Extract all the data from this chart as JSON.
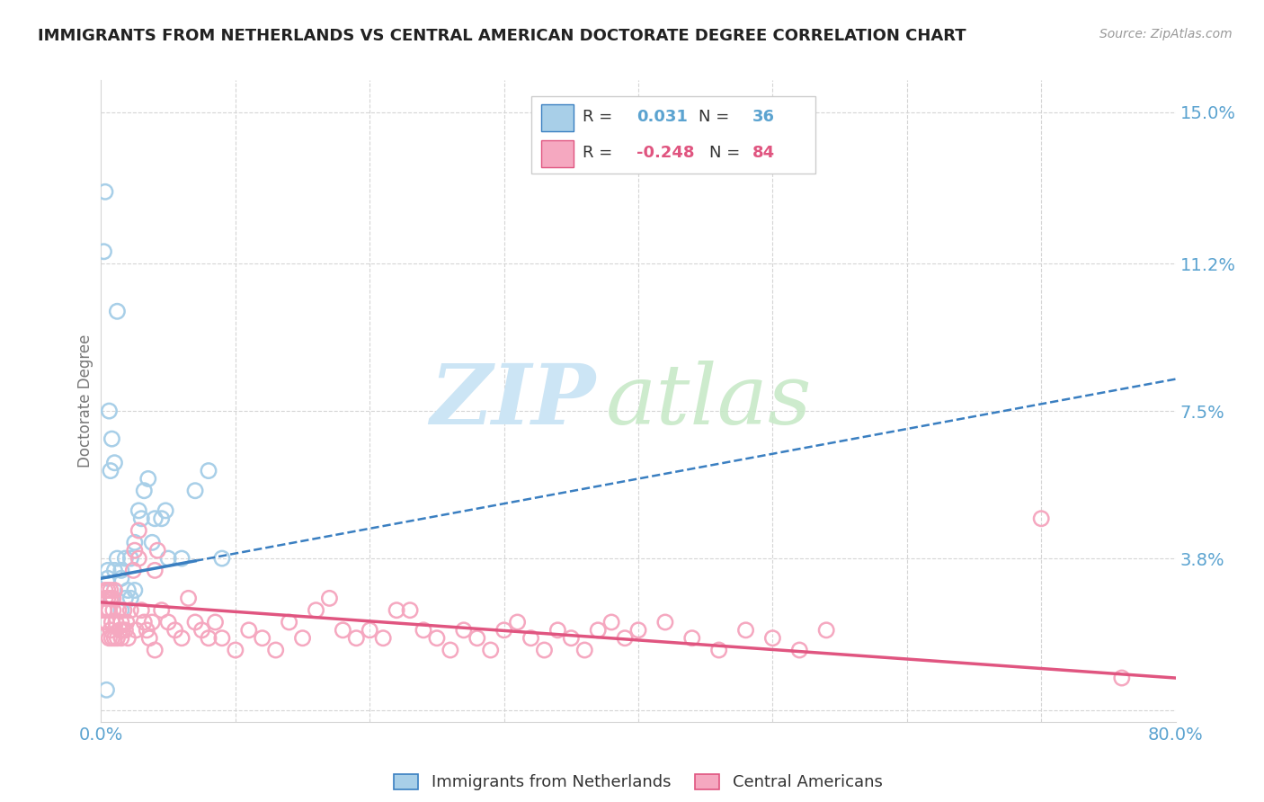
{
  "title": "IMMIGRANTS FROM NETHERLANDS VS CENTRAL AMERICAN DOCTORATE DEGREE CORRELATION CHART",
  "source": "Source: ZipAtlas.com",
  "ylabel": "Doctorate Degree",
  "color_blue": "#a8cfe8",
  "color_pink": "#f5a8c0",
  "color_blue_line": "#3a7fc1",
  "color_pink_line": "#e05580",
  "color_blue_text": "#5ba3d0",
  "color_grid": "#d5d5d5",
  "ytick_vals": [
    0.0,
    0.038,
    0.075,
    0.112,
    0.15
  ],
  "ytick_labels": [
    "",
    "3.8%",
    "7.5%",
    "11.2%",
    "15.0%"
  ],
  "xtick_vals": [
    0.0,
    0.8
  ],
  "xtick_labels": [
    "0.0%",
    "80.0%"
  ],
  "xlim": [
    0.0,
    0.8
  ],
  "ylim": [
    -0.003,
    0.158
  ],
  "xgrid_vals": [
    0.1,
    0.2,
    0.3,
    0.4,
    0.5,
    0.6,
    0.7
  ],
  "nl_line_x0": 0.0,
  "nl_line_y0": 0.033,
  "nl_line_x1": 0.07,
  "nl_line_y1": 0.038,
  "nl_line_dash_x1": 0.8,
  "nl_line_dash_y1": 0.083,
  "ca_line_x0": 0.0,
  "ca_line_y0": 0.027,
  "ca_line_x1": 0.8,
  "ca_line_y1": 0.008,
  "nl_x": [
    0.01,
    0.015,
    0.018,
    0.022,
    0.025,
    0.028,
    0.03,
    0.032,
    0.035,
    0.038,
    0.04,
    0.045,
    0.048,
    0.05,
    0.06,
    0.07,
    0.08,
    0.09,
    0.005,
    0.005,
    0.006,
    0.007,
    0.008,
    0.01,
    0.012,
    0.015,
    0.018,
    0.02,
    0.022,
    0.025,
    0.003,
    0.002,
    0.012,
    0.015,
    0.004,
    0.008
  ],
  "nl_y": [
    0.035,
    0.035,
    0.038,
    0.038,
    0.042,
    0.05,
    0.048,
    0.055,
    0.058,
    0.042,
    0.048,
    0.048,
    0.05,
    0.038,
    0.038,
    0.055,
    0.06,
    0.038,
    0.035,
    0.033,
    0.075,
    0.06,
    0.068,
    0.062,
    0.038,
    0.033,
    0.028,
    0.03,
    0.028,
    0.03,
    0.13,
    0.115,
    0.1,
    0.025,
    0.005,
    0.028
  ],
  "ca_x": [
    0.001,
    0.002,
    0.003,
    0.004,
    0.005,
    0.005,
    0.006,
    0.006,
    0.007,
    0.007,
    0.008,
    0.008,
    0.009,
    0.01,
    0.01,
    0.011,
    0.012,
    0.013,
    0.014,
    0.015,
    0.015,
    0.016,
    0.017,
    0.018,
    0.019,
    0.02,
    0.022,
    0.024,
    0.026,
    0.028,
    0.03,
    0.032,
    0.034,
    0.036,
    0.038,
    0.04,
    0.045,
    0.05,
    0.055,
    0.06,
    0.065,
    0.07,
    0.075,
    0.08,
    0.085,
    0.09,
    0.1,
    0.11,
    0.12,
    0.13,
    0.14,
    0.15,
    0.16,
    0.17,
    0.18,
    0.19,
    0.2,
    0.21,
    0.22,
    0.23,
    0.24,
    0.25,
    0.26,
    0.27,
    0.28,
    0.29,
    0.3,
    0.31,
    0.32,
    0.33,
    0.34,
    0.35,
    0.36,
    0.37,
    0.38,
    0.39,
    0.4,
    0.42,
    0.44,
    0.46,
    0.48,
    0.5,
    0.52,
    0.54,
    0.7,
    0.76,
    0.005,
    0.007,
    0.009,
    0.003,
    0.025,
    0.028,
    0.04,
    0.042
  ],
  "ca_y": [
    0.022,
    0.025,
    0.028,
    0.022,
    0.025,
    0.03,
    0.018,
    0.025,
    0.02,
    0.028,
    0.022,
    0.018,
    0.025,
    0.03,
    0.018,
    0.022,
    0.018,
    0.025,
    0.02,
    0.022,
    0.018,
    0.02,
    0.025,
    0.02,
    0.022,
    0.018,
    0.025,
    0.035,
    0.02,
    0.038,
    0.025,
    0.022,
    0.02,
    0.018,
    0.022,
    0.015,
    0.025,
    0.022,
    0.02,
    0.018,
    0.028,
    0.022,
    0.02,
    0.018,
    0.022,
    0.018,
    0.015,
    0.02,
    0.018,
    0.015,
    0.022,
    0.018,
    0.025,
    0.028,
    0.02,
    0.018,
    0.02,
    0.018,
    0.025,
    0.025,
    0.02,
    0.018,
    0.015,
    0.02,
    0.018,
    0.015,
    0.02,
    0.022,
    0.018,
    0.015,
    0.02,
    0.018,
    0.015,
    0.02,
    0.022,
    0.018,
    0.02,
    0.022,
    0.018,
    0.015,
    0.02,
    0.018,
    0.015,
    0.02,
    0.048,
    0.008,
    0.028,
    0.03,
    0.028,
    0.03,
    0.04,
    0.045,
    0.035,
    0.04
  ],
  "legend1_label": "Immigrants from Netherlands",
  "legend2_label": "Central Americans"
}
